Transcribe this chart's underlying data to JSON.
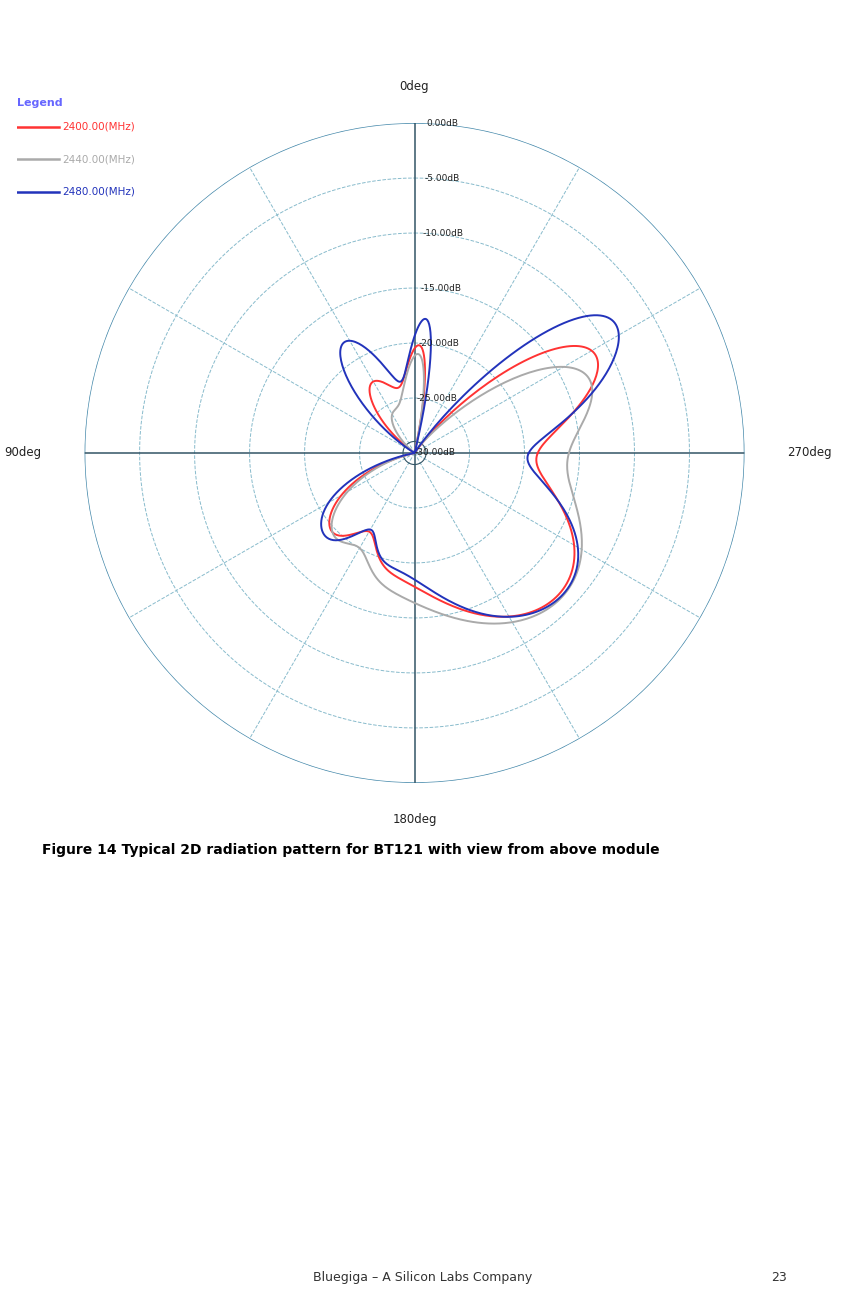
{
  "title": "",
  "caption": "Figure 14 Typical 2D radiation pattern for BT121 with view from above module",
  "footer": "Bluegiga – A Silicon Labs Company",
  "page_number": "23",
  "legend_title": "Legend",
  "legend_title_color": "#6666ff",
  "series": [
    {
      "label": "2400.00(MHz)",
      "color": "#ff3333",
      "linewidth": 1.4
    },
    {
      "label": "2440.00(MHz)",
      "color": "#aaaaaa",
      "linewidth": 1.4
    },
    {
      "label": "2480.00(MHz)",
      "color": "#2233bb",
      "linewidth": 1.4
    }
  ],
  "ring_color_outer": "#4488aa",
  "ring_color_dashed": "#88bbcc",
  "axis_color": "#335566",
  "background_color": "#ffffff"
}
